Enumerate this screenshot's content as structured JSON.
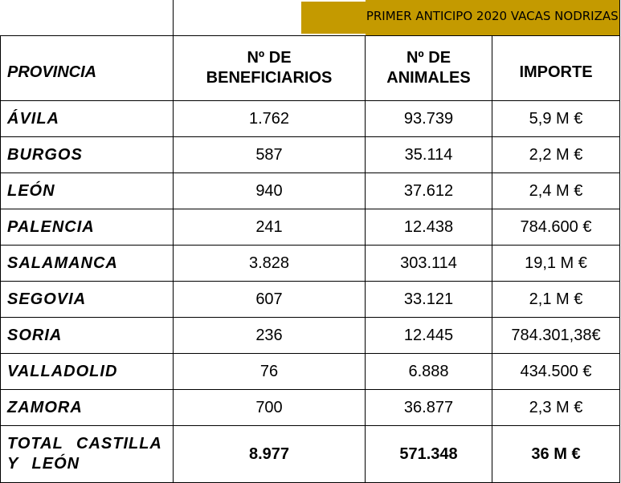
{
  "banner": "PRIMER ANTICIPO 2020 VACAS NODRIZAS",
  "headers": {
    "provincia": "PROVINCIA",
    "beneficiarios_1": "Nº DE",
    "beneficiarios_2": "BENEFICIARIOS",
    "animales_1": "Nº DE",
    "animales_2": "ANIMALES",
    "importe": "IMPORTE"
  },
  "rows": [
    {
      "provincia": "ÁVILA",
      "beneficiarios": "1.762",
      "animales": "93.739",
      "importe": "5,9 M €"
    },
    {
      "provincia": "BURGOS",
      "beneficiarios": "587",
      "animales": "35.114",
      "importe": "2,2 M €"
    },
    {
      "provincia": "LEÓN",
      "beneficiarios": "940",
      "animales": "37.612",
      "importe": "2,4 M €"
    },
    {
      "provincia": "PALENCIA",
      "beneficiarios": "241",
      "animales": "12.438",
      "importe": "784.600 €"
    },
    {
      "provincia": "SALAMANCA",
      "beneficiarios": "3.828",
      "animales": "303.114",
      "importe": "19,1 M €"
    },
    {
      "provincia": "SEGOVIA",
      "beneficiarios": "607",
      "animales": "33.121",
      "importe": "2,1 M €"
    },
    {
      "provincia": "SORIA",
      "beneficiarios": "236",
      "animales": "12.445",
      "importe": "784.301,38€"
    },
    {
      "provincia": "VALLADOLID",
      "beneficiarios": "76",
      "animales": "6.888",
      "importe": "434.500 €"
    },
    {
      "provincia": "ZAMORA",
      "beneficiarios": "700",
      "animales": "36.877",
      "importe": "2,3 M €"
    }
  ],
  "total": {
    "provincia_1": "TOTAL CASTILLA",
    "provincia_2": "Y LEÓN",
    "beneficiarios": "8.977",
    "animales": "571.348",
    "importe": "36 M €"
  },
  "colors": {
    "banner_background": "#c49a00",
    "border": "#000000"
  }
}
